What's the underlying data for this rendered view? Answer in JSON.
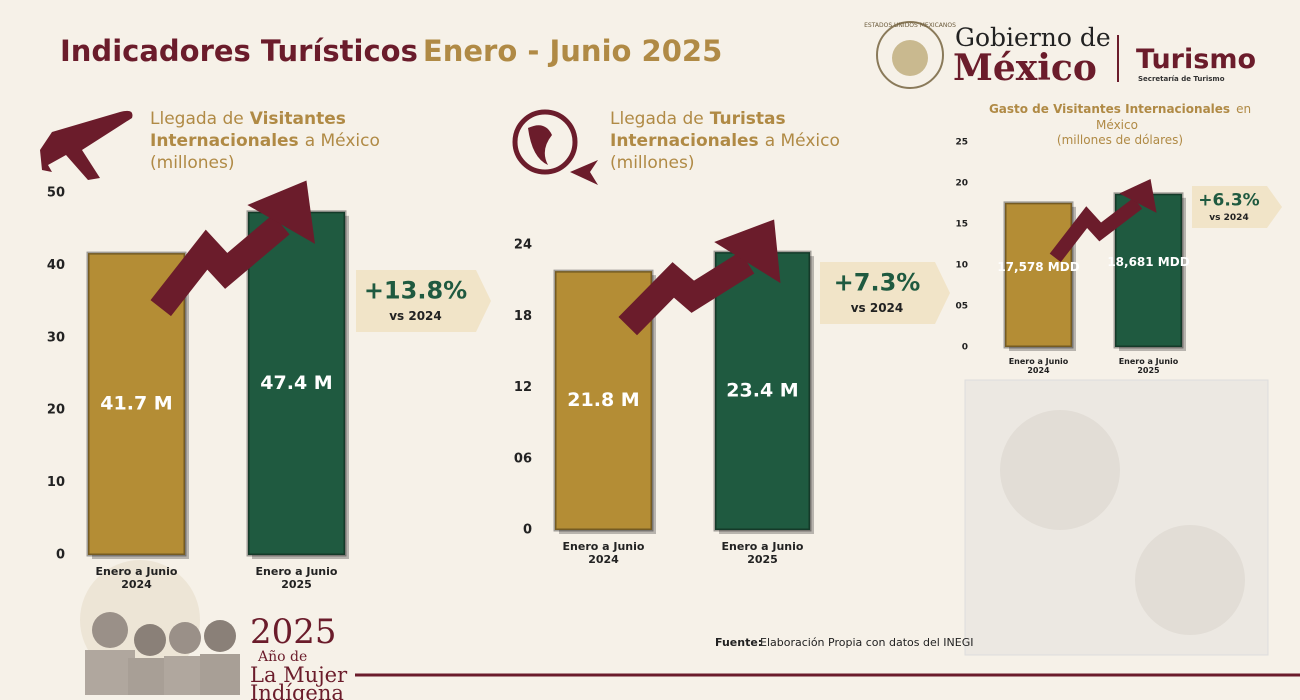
{
  "header": {
    "title_main": "Indicadores Turísticos",
    "title_period": "Enero - Junio 2025"
  },
  "logo": {
    "seal": "ESTADOS UNIDOS MEXICANOS",
    "line1": "Gobierno de",
    "line2": "México",
    "agency": "Turismo",
    "agency_sub": "Secretaría de Turismo"
  },
  "chart_data": [
    {
      "type": "bar",
      "title_parts": [
        {
          "text": "Llegada de",
          "bold": false
        },
        {
          "text": "Visitantes Internacionales",
          "bold": true
        },
        {
          "text": "a México",
          "bold": false
        }
      ],
      "unit": "(millones)",
      "categories": [
        "Enero a Junio 2024",
        "Enero a Junio 2025"
      ],
      "values": [
        41.7,
        47.4
      ],
      "value_labels": [
        "41.7 M",
        "47.4 M"
      ],
      "colors": [
        "#b48d35",
        "#1f5a40"
      ],
      "ylim": [
        0,
        50
      ],
      "yticks": [
        0,
        10,
        20,
        30,
        40,
        50
      ],
      "change": "+13.8%",
      "change_note": "vs 2024"
    },
    {
      "type": "bar",
      "title_parts": [
        {
          "text": "Llegada de",
          "bold": false
        },
        {
          "text": "Turistas Internacionales",
          "bold": true
        },
        {
          "text": "a México",
          "bold": false
        }
      ],
      "unit": "(millones)",
      "categories": [
        "Enero a Junio 2024",
        "Enero a Junio 2025"
      ],
      "values": [
        21.8,
        23.4
      ],
      "value_labels": [
        "21.8 M",
        "23.4 M"
      ],
      "colors": [
        "#b48d35",
        "#1f5a40"
      ],
      "ylim": [
        0,
        24
      ],
      "yticks": [
        0,
        {
          "value": 6,
          "label": "06"
        },
        12,
        18,
        24
      ],
      "change": "+7.3%",
      "change_note": "vs 2024"
    },
    {
      "type": "bar",
      "title_parts": [
        {
          "text": "Gasto de Visitantes Internacionales",
          "bold": true
        },
        {
          "text": "en México",
          "bold": false
        }
      ],
      "unit": "(millones de dólares)",
      "categories": [
        "Enero a Junio 2024",
        "Enero a Junio 2025"
      ],
      "values": [
        17.578,
        18.681
      ],
      "value_labels": [
        "17,578 MDD",
        "18,681 MDD"
      ],
      "colors": [
        "#b48d35",
        "#1f5a40"
      ],
      "ylim": [
        0,
        25
      ],
      "yticks": [
        0,
        {
          "value": 5,
          "label": "05"
        },
        10,
        15,
        20,
        25
      ],
      "change": "+6.3%",
      "change_note": "vs 2024"
    }
  ],
  "footer": {
    "source_label": "Fuente:",
    "source_text": "Elaboración Propia con datos del INEGI",
    "year": "2025",
    "line1": "Año de",
    "line2": "La Mujer",
    "line3": "Indígena"
  }
}
